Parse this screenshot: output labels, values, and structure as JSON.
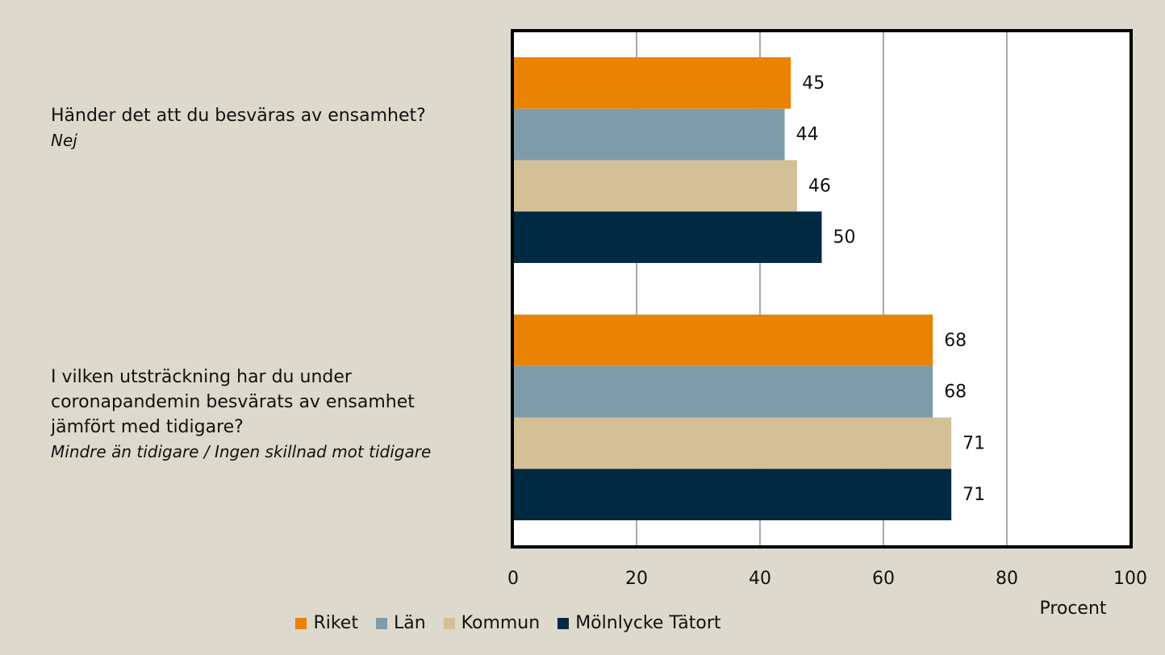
{
  "chart_data": {
    "type": "bar",
    "orientation": "horizontal",
    "categories": [
      "Händer det att du besväras av ensamhet?",
      "I vilken utsträckning har du under coronapandemin besvärats av ensamhet jämfört med tidigare?"
    ],
    "category_subtitles": [
      "Nej",
      "Mindre än tidigare / Ingen skillnad mot tidigare"
    ],
    "series": [
      {
        "name": "Riket",
        "color": "#e98300",
        "values": [
          45,
          68
        ]
      },
      {
        "name": "Län",
        "color": "#7f9baa",
        "values": [
          44,
          68
        ]
      },
      {
        "name": "Kommun",
        "color": "#d3c096",
        "values": [
          46,
          71
        ]
      },
      {
        "name": "Mölnlycke Tätort",
        "color": "#002a41",
        "values": [
          50,
          71
        ]
      }
    ],
    "xlabel": "Procent",
    "xlim": [
      0,
      100
    ],
    "xticks": [
      0,
      20,
      40,
      60,
      80,
      100
    ],
    "grid": true,
    "legend": "bottom"
  }
}
